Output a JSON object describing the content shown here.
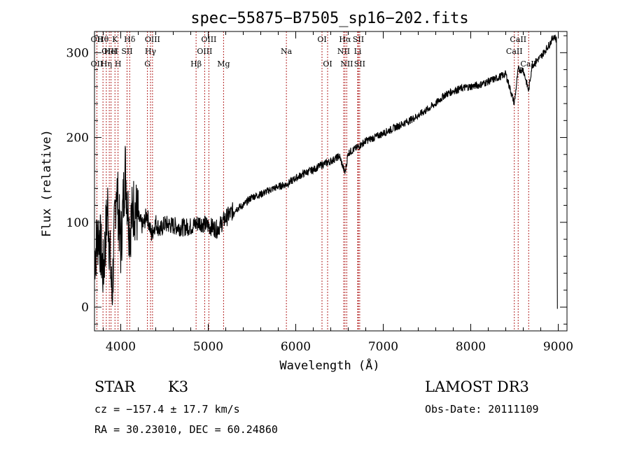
{
  "chart_data": {
    "type": "line",
    "title": "spec−55875−B7505_sp16−202.fits",
    "xlabel": "Wavelength (Å)",
    "ylabel": "Flux (relative)",
    "xlim": [
      3700,
      9100
    ],
    "ylim": [
      -28,
      325
    ],
    "x_ticks": [
      4000,
      5000,
      6000,
      7000,
      8000,
      9000
    ],
    "x_tick_labels": [
      "4000",
      "5000",
      "6000",
      "7000",
      "8000",
      "9000"
    ],
    "y_ticks": [
      0,
      100,
      200,
      300
    ],
    "y_tick_labels": [
      "0",
      "100",
      "200",
      "300"
    ],
    "series": [
      {
        "name": "flux",
        "x": [
          3700,
          3750,
          3800,
          3850,
          3900,
          3950,
          4000,
          4050,
          4100,
          4150,
          4200,
          4250,
          4300,
          4350,
          4400,
          4450,
          4500,
          4600,
          4700,
          4800,
          4900,
          5000,
          5100,
          5200,
          5300,
          5400,
          5500,
          5600,
          5700,
          5800,
          5900,
          6000,
          6100,
          6200,
          6300,
          6400,
          6500,
          6563,
          6600,
          6700,
          6800,
          6900,
          7000,
          7100,
          7200,
          7300,
          7400,
          7500,
          7600,
          7700,
          7800,
          7900,
          8000,
          8100,
          8200,
          8300,
          8400,
          8498,
          8542,
          8600,
          8662,
          8700,
          8800,
          8900,
          8950,
          8980
        ],
        "y": [
          60,
          90,
          40,
          120,
          10,
          150,
          70,
          165,
          90,
          120,
          105,
          95,
          110,
          85,
          100,
          90,
          98,
          96,
          94,
          95,
          100,
          96,
          92,
          105,
          115,
          120,
          130,
          133,
          138,
          142,
          145,
          152,
          158,
          162,
          168,
          172,
          178,
          158,
          182,
          188,
          196,
          200,
          205,
          210,
          215,
          220,
          226,
          233,
          240,
          250,
          255,
          258,
          260,
          262,
          266,
          270,
          275,
          240,
          280,
          280,
          255,
          285,
          295,
          310,
          320,
          315
        ]
      }
    ],
    "line_markers": [
      {
        "label": "Hθ",
        "x": 3797,
        "row": 0
      },
      {
        "label": "OII",
        "x": 3727,
        "row": 0
      },
      {
        "label": "K",
        "x": 3934,
        "row": 0
      },
      {
        "label": "Hδ",
        "x": 4102,
        "row": 0
      },
      {
        "label": "OIII",
        "x": 4363,
        "row": 0
      },
      {
        "label": "OIII",
        "x": 5007,
        "row": 0
      },
      {
        "label": "OI",
        "x": 6300,
        "row": 0
      },
      {
        "label": "Hα",
        "x": 6563,
        "row": 0
      },
      {
        "label": "SII",
        "x": 6716,
        "row": 0
      },
      {
        "label": "CaII",
        "x": 8542,
        "row": 0
      },
      {
        "label": "OIII",
        "x": 3869,
        "row": 1
      },
      {
        "label": "HeI",
        "x": 3889,
        "row": 1
      },
      {
        "label": "SII",
        "x": 4072,
        "row": 1
      },
      {
        "label": "Hγ",
        "x": 4340,
        "row": 1
      },
      {
        "label": "OIII",
        "x": 4959,
        "row": 1
      },
      {
        "label": "Na",
        "x": 5893,
        "row": 1
      },
      {
        "label": "NII",
        "x": 6548,
        "row": 1
      },
      {
        "label": "Li",
        "x": 6708,
        "row": 1
      },
      {
        "label": "CaII",
        "x": 8498,
        "row": 1
      },
      {
        "label": "OII",
        "x": 3727,
        "row": 2
      },
      {
        "label": "Hη",
        "x": 3835,
        "row": 2
      },
      {
        "label": "H",
        "x": 3969,
        "row": 2
      },
      {
        "label": "G",
        "x": 4305,
        "row": 2
      },
      {
        "label": "Hβ",
        "x": 4861,
        "row": 2
      },
      {
        "label": "Mg",
        "x": 5175,
        "row": 2
      },
      {
        "label": "OI",
        "x": 6364,
        "row": 2
      },
      {
        "label": "NII",
        "x": 6583,
        "row": 2
      },
      {
        "label": "SII",
        "x": 6731,
        "row": 2
      },
      {
        "label": "CaII",
        "x": 8662,
        "row": 2
      }
    ]
  },
  "info": {
    "object_class": "STAR",
    "subclass": "K3",
    "survey": "LAMOST DR3",
    "cz": "cz = −157.4 ± 17.7 km/s",
    "obs_date": "Obs-Date: 20111109",
    "coords": "RA =  30.23010, DEC =  60.24860"
  },
  "colors": {
    "line_marker": "#b22222",
    "spectrum": "#000000"
  }
}
